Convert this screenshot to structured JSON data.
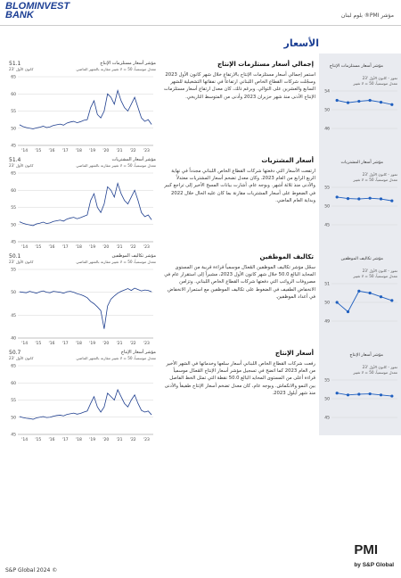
{
  "header": {
    "brand_line1": "BLOMINVEST",
    "brand_line2": "BANK",
    "report": "مؤشر PMI® بلوم لبنان"
  },
  "page_title": "الأسعار",
  "sections": [
    {
      "heading": "إجمالي أسعار مستلزمات الإنتاج",
      "text": "استمر إجمالي أسعار مستلزمات الإنتاج بالارتفاع خلال شهر كانون الأول 2023 وسجّلت شركات القطاع الخاص اللبناني ارتفاعاً في نفقاتها التشغيلية للشهر السابع والعشرين على التوالي. وبرغم ذلك، كان معدل ارتفاع أسعار مستلزمات الإنتاج الأدنى منذ شهر حزيران 2023 وأدنى من المتوسط التاريخي.",
      "chart": {
        "type": "line",
        "title": "مؤشر أسعار مستلزمات الإنتاج",
        "subtitle": "معدل موسمياً، 50 = لا تغيير مقارنة بالشهر الماضي",
        "latest_value": 51.1,
        "latest_label": "كانون الأول '23",
        "color": "#1f3f8f",
        "ylim": [
          45,
          65
        ],
        "yticks": [
          45,
          50,
          55,
          60,
          65
        ],
        "xticks": [
          "'14",
          "'15",
          "'16",
          "'17",
          "'18",
          "'19",
          "'20",
          "'21",
          "'22",
          "'23"
        ],
        "values": [
          51,
          50.5,
          50.2,
          50,
          49.8,
          50.1,
          50.3,
          50.6,
          50.2,
          50.4,
          50.8,
          51,
          51.2,
          50.9,
          51.5,
          51.8,
          52,
          51.6,
          51.9,
          52.3,
          52.5,
          56,
          58,
          54,
          53,
          55,
          60,
          59,
          57,
          61,
          58,
          56,
          55,
          57,
          59,
          56,
          53,
          52,
          52.5,
          51.1
        ]
      },
      "mini": {
        "title": "مؤشر أسعار مستلزمات الإنتاج",
        "period": "تموز - كانون الأول '23",
        "subtitle": "معدل موسمياً، 50 = لا تغيير",
        "color": "#1f5fbf",
        "ylim": [
          46,
          54
        ],
        "yticks": [
          46,
          50,
          54
        ],
        "values": [
          52,
          51.5,
          51.8,
          52,
          51.6,
          51.1
        ]
      }
    },
    {
      "heading": "أسعار المشتريات",
      "text": "ارتفعت الأسعار التي دفعتها شركات القطاع الخاص اللبناني مجدداً في نهاية الربع الرابع من العام 2023. وكان معدل تضخم أسعار المشتريات معتدلاً والأدنى منذ ثلاثة أشهر. وبوجه عام، أشارت بيانات المسح الأخير إلى تراجع كبير في الضغوط على أسعار المشتريات مقارنة بما كان عليه الحال خلال 2022 وبداية العام الماضي.",
      "chart": {
        "type": "line",
        "title": "مؤشر أسعار المشتريات",
        "subtitle": "معدل موسمياً، 50 = لا تغيير مقارنة بالشهر الماضي",
        "latest_value": 51.4,
        "latest_label": "كانون الأول '23",
        "color": "#1f3f8f",
        "ylim": [
          45,
          65
        ],
        "yticks": [
          45,
          50,
          55,
          60,
          65
        ],
        "xticks": [
          "'14",
          "'15",
          "'16",
          "'17",
          "'18",
          "'19",
          "'20",
          "'21",
          "'22",
          "'23"
        ],
        "values": [
          50.8,
          50.4,
          50.1,
          49.9,
          49.7,
          50.2,
          50.4,
          50.7,
          50.3,
          50.5,
          50.9,
          51.1,
          51.3,
          51,
          51.6,
          51.9,
          52.1,
          51.7,
          52,
          52.4,
          52.8,
          57,
          59,
          55,
          53.5,
          56,
          61,
          60,
          58,
          62,
          59,
          57,
          56,
          58,
          60,
          57,
          53.5,
          52.3,
          52.8,
          51.4
        ]
      },
      "mini": {
        "title": "مؤشر أسعار المشتريات",
        "period": "تموز - كانون الأول '23",
        "subtitle": "معدل موسمياً، 50 = لا تغيير",
        "color": "#1f5fbf",
        "ylim": [
          45,
          55
        ],
        "yticks": [
          45,
          50,
          55
        ],
        "values": [
          52.4,
          52,
          51.9,
          52.1,
          51.9,
          51.4
        ]
      }
    },
    {
      "heading": "تكاليف الموظفين",
      "text": "سجّل مؤشر تكاليف الموظفين المُعدّل موسمياً قراءة قريبة من المستوى المحايد البالغ 50.0 خلال شهر كانون الأول 2023، مشيراً إلى استقرار عام في مصروفات الرواتب التي دفعتها شركات القطاع الخاص اللبناني. وتزامن الانخفاض الطفيف في الضغوط على تكاليف الموظفين مع استمرار الانخفاض في أعداد الموظفين.",
      "chart": {
        "type": "line",
        "title": "مؤشر تكاليف الموظفين",
        "subtitle": "معدل موسمياً، 50 = لا تغيير مقارنة بالشهر الماضي",
        "latest_value": 50.1,
        "latest_label": "كانون الأول '23",
        "color": "#1f3f8f",
        "ylim": [
          40,
          55
        ],
        "yticks": [
          40,
          45,
          50,
          55
        ],
        "xticks": [
          "'14",
          "'15",
          "'16",
          "'17",
          "'18",
          "'19",
          "'20",
          "'21",
          "'22",
          "'23"
        ],
        "values": [
          50.1,
          50,
          49.9,
          50.2,
          50,
          49.8,
          50.1,
          50.3,
          50,
          49.9,
          50.2,
          50.1,
          50,
          49.8,
          50.1,
          50.2,
          50,
          49.7,
          49.5,
          49.2,
          48.8,
          48,
          47.5,
          46.8,
          46,
          42,
          47,
          48.5,
          49.2,
          49.8,
          50.2,
          50.5,
          50.8,
          50.4,
          50.9,
          50.6,
          50.3,
          50.5,
          50.4,
          50.1
        ]
      },
      "mini": {
        "title": "مؤشر تكاليف الموظفين",
        "period": "تموز - كانون الأول '23",
        "subtitle": "معدل موسمياً، 50 = لا تغيير",
        "color": "#1f5fbf",
        "ylim": [
          49,
          51
        ],
        "yticks": [
          49,
          50,
          51
        ],
        "values": [
          50,
          49.5,
          50.6,
          50.5,
          50.3,
          50.1
        ]
      }
    },
    {
      "heading": "أسعار الإنتاج",
      "text": "رفعت شركات القطاع الخاص اللبناني أسعار سلعها وخدماتها في الشهر الأخير من العام 2023 كما اتضح في تسجيل مؤشر أسعار الإنتاج المُعدّل موسمياً قراءة أعلى من المستوى المحايد البالغ 50.0 نقطة التي تمثل الخط الفاصل بين النمو والانكماش. وبوجه عام، كان معدل تضخم أسعار الإنتاج طفيفاً والأدنى منذ شهر أيلول 2023.",
      "chart": {
        "type": "line",
        "title": "مؤشر أسعار الإنتاج",
        "subtitle": "معدل موسمياً، 50 = لا تغيير مقارنة بالشهر الماضي",
        "latest_value": 50.7,
        "latest_label": "كانون الأول '23",
        "color": "#1f3f8f",
        "ylim": [
          45,
          65
        ],
        "yticks": [
          45,
          50,
          55,
          60,
          65
        ],
        "xticks": [
          "'14",
          "'15",
          "'16",
          "'17",
          "'18",
          "'19",
          "'20",
          "'21",
          "'22",
          "'23"
        ],
        "values": [
          50.2,
          49.9,
          49.7,
          49.6,
          49.4,
          49.8,
          50,
          50.2,
          49.9,
          50,
          50.3,
          50.5,
          50.6,
          50.4,
          50.8,
          51,
          51.2,
          50.9,
          51.1,
          51.5,
          51.8,
          54,
          56,
          53,
          51.5,
          53,
          57,
          56,
          55,
          58,
          56,
          54,
          53,
          55,
          56.5,
          54,
          52,
          51.5,
          51.8,
          50.7
        ]
      },
      "mini": {
        "title": "مؤشر أسعار الإنتاج",
        "period": "تموز - كانون الأول '23",
        "subtitle": "معدل موسمياً، 50 = لا تغيير",
        "color": "#1f5fbf",
        "ylim": [
          45,
          55
        ],
        "yticks": [
          45,
          50,
          55
        ],
        "values": [
          51.5,
          51,
          51.2,
          51.3,
          51,
          50.7
        ]
      }
    }
  ],
  "footer": {
    "copyright": "S&P Global 2024 ©",
    "pmi": "PMI",
    "by": "by S&P Global"
  }
}
